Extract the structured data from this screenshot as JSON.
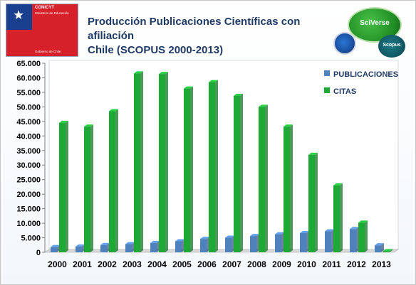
{
  "logo": {
    "org": "CONICYT",
    "ministry": "Ministerio de Educación",
    "gov": "Gobierno de Chile"
  },
  "title_line1": "Producción Publicaciones Científicas con afiliación",
  "title_line2": "Chile (SCOPUS 2000-2013)",
  "sciverse": "SciVerse",
  "scopus": "Scopus",
  "colors": {
    "publicaciones": "#4f81bd",
    "citas": "#1ea836"
  },
  "chart_data": {
    "type": "bar",
    "categories": [
      "2000",
      "2001",
      "2002",
      "2003",
      "2004",
      "2005",
      "2006",
      "2007",
      "2008",
      "2009",
      "2010",
      "2011",
      "2012",
      "2013"
    ],
    "series": [
      {
        "name": "PUBLICACIONES",
        "values": [
          1800,
          2000,
          2500,
          2800,
          3200,
          3800,
          4600,
          5000,
          5600,
          6200,
          6600,
          7200,
          8000,
          2400
        ]
      },
      {
        "name": "CITAS",
        "values": [
          44500,
          43200,
          48500,
          61500,
          61300,
          56300,
          58500,
          53800,
          50000,
          43200,
          33500,
          23000,
          10200,
          400
        ]
      }
    ],
    "yticks": [
      "65.000",
      "60.000",
      "55.000",
      "50.000",
      "45.000",
      "40.000",
      "35.000",
      "30.000",
      "25.000",
      "20.000",
      "15.000",
      "10.000",
      "5.000",
      "0"
    ],
    "ylim": [
      0,
      65000
    ],
    "legend_position": "top-right",
    "grid": false
  }
}
